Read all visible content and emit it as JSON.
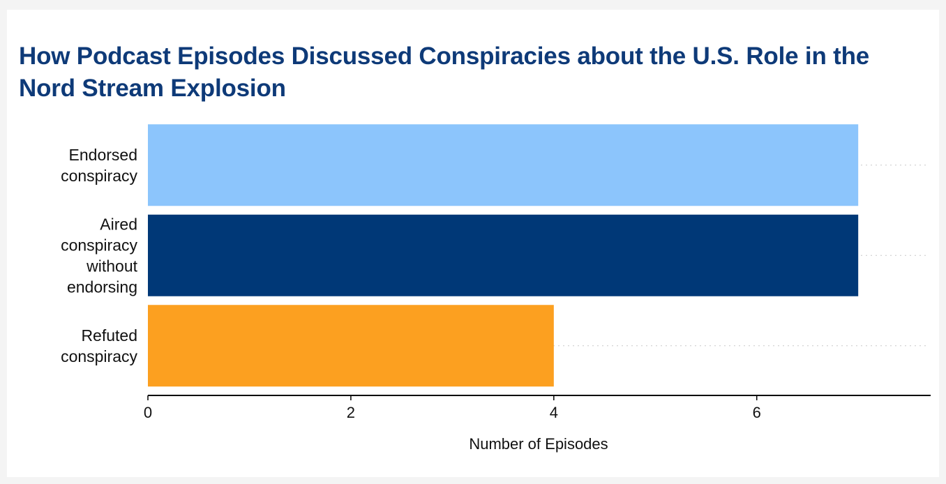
{
  "chart_data": {
    "type": "bar",
    "orientation": "horizontal",
    "title": "How Podcast Episodes Discussed Conspiracies about the U.S. Role in the Nord Stream Explosion",
    "xlabel": "Number of Episodes",
    "ylabel": "",
    "xlim": [
      0,
      7.7
    ],
    "xticks": [
      0,
      2,
      4,
      6
    ],
    "grid": "dotted horizontal guide lines",
    "legend": "none",
    "categories": [
      [
        "Endorsed",
        "conspiracy"
      ],
      [
        "Aired",
        "conspiracy",
        "without",
        "endorsing"
      ],
      [
        "Refuted",
        "conspiracy"
      ]
    ],
    "values": [
      7,
      7,
      4
    ],
    "colors": [
      "#8cc5fc",
      "#003877",
      "#fca020"
    ]
  }
}
